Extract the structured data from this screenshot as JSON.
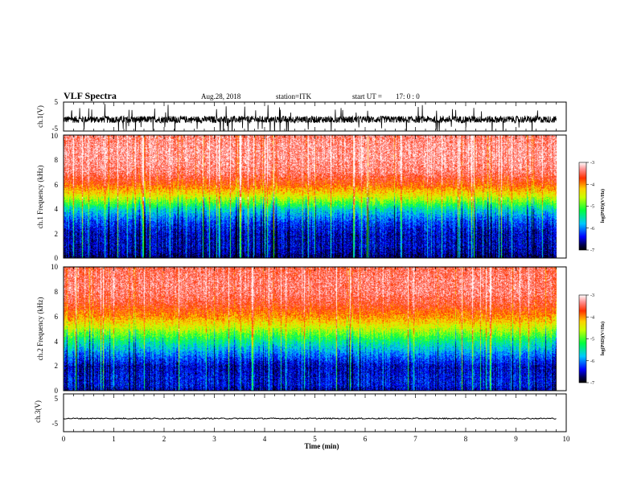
{
  "header": {
    "title": "VLF Spectra",
    "date": "Aug.28, 2018",
    "station": "station=ITK",
    "start_label": "start UT =",
    "start_value": "17: 0 : 0"
  },
  "colorbars": [
    {
      "label": "log(PSD)(V²/Hz)",
      "ticks": [
        "-3",
        "-4",
        "-5",
        "-6",
        "-7"
      ]
    },
    {
      "label": "log(PSD)(V²/Hz)",
      "ticks": [
        "-3",
        "-4",
        "-5",
        "-6",
        "-7"
      ]
    }
  ],
  "chart_data": [
    {
      "type": "line",
      "name": "channel-1-waveform",
      "ylabel": "ch.1(V)",
      "ylim": [
        -5,
        5
      ],
      "y_ticks": [
        "5",
        "-5"
      ],
      "xlim": [
        0,
        10
      ],
      "baseline": -1,
      "noise_amplitude": 1.2,
      "spike_amplitude": 4.5,
      "data_end": 9.8
    },
    {
      "type": "heatmap",
      "name": "channel-1-spectrogram",
      "ylabel": "ch.1 Frequency (kHz)",
      "ylim": [
        0,
        10
      ],
      "y_ticks": [
        "0",
        "2",
        "4",
        "6",
        "8",
        "10"
      ],
      "xlim": [
        0,
        10
      ],
      "zlim": [
        -7,
        -3
      ],
      "data_end": 9.8,
      "profile_freq_khz": [
        0,
        0.5,
        1,
        2,
        3,
        4,
        4.5,
        5,
        6,
        7,
        8,
        9,
        10
      ],
      "profile_log_psd": [
        -6.8,
        -6.6,
        -6.5,
        -6.5,
        -6.2,
        -5.6,
        -5.0,
        -4.5,
        -3.8,
        -3.4,
        -3.3,
        -3.3,
        -3.4
      ]
    },
    {
      "type": "heatmap",
      "name": "channel-2-spectrogram",
      "ylabel": "ch.2 Frequency (kHz)",
      "ylim": [
        0,
        10
      ],
      "y_ticks": [
        "0",
        "2",
        "4",
        "6",
        "8",
        "10"
      ],
      "xlim": [
        0,
        10
      ],
      "zlim": [
        -7,
        -3
      ],
      "data_end": 9.8,
      "profile_freq_khz": [
        0,
        0.5,
        1,
        2,
        3,
        4,
        5,
        6,
        7,
        8,
        9,
        10
      ],
      "profile_log_psd": [
        -6.6,
        -6.4,
        -6.4,
        -6.5,
        -6.0,
        -5.4,
        -4.6,
        -4.0,
        -3.6,
        -3.4,
        -3.4,
        -3.5
      ]
    },
    {
      "type": "line",
      "name": "channel-3-waveform",
      "ylabel": "ch.3(V)",
      "ylim": [
        -5,
        5
      ],
      "y_ticks": [
        "5",
        "-5"
      ],
      "xlim": [
        0,
        10
      ],
      "baseline": -1.5,
      "noise_amplitude": 0.15,
      "data_end": 9.8
    }
  ],
  "x_axis": {
    "label": "Time (min)",
    "ticks": [
      "0",
      "1",
      "2",
      "3",
      "4",
      "5",
      "6",
      "7",
      "8",
      "9",
      "10"
    ]
  }
}
